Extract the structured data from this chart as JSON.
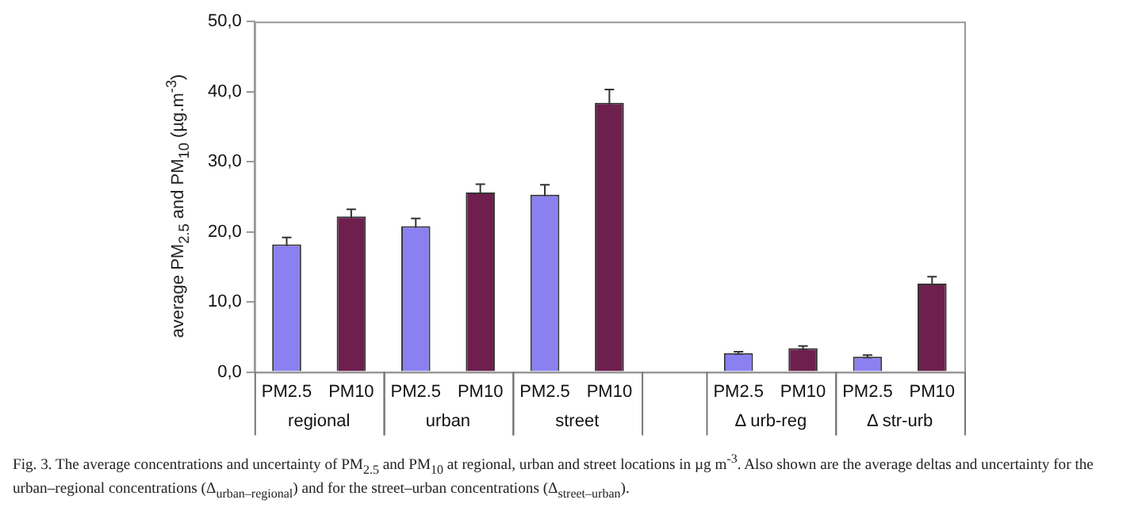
{
  "chart_data": {
    "type": "bar",
    "ylabel": "average PM$_{2.5}$ and PM$_{10}$ (µg.m$^{-3}$)",
    "categories": [
      "PM2.5",
      "PM10",
      "PM2.5",
      "PM10",
      "PM2.5",
      "PM10",
      null,
      "PM2.5",
      "PM10",
      "PM2.5",
      "PM10"
    ],
    "values": [
      18.2,
      22.2,
      20.8,
      25.6,
      25.3,
      38.4,
      null,
      2.7,
      3.4,
      2.2,
      12.6
    ],
    "errors": [
      1.0,
      1.0,
      1.1,
      1.2,
      1.4,
      1.9,
      null,
      0.2,
      0.3,
      0.2,
      1.0
    ],
    "colors": [
      "#8b80f0",
      "#6e1f4e",
      "#8b80f0",
      "#6e1f4e",
      "#8b80f0",
      "#6e1f4e",
      null,
      "#8b80f0",
      "#6e1f4e",
      "#8b80f0",
      "#6e1f4e"
    ],
    "ylim": [
      0,
      50
    ],
    "yticks": [
      {
        "value": 0,
        "label": "0,0"
      },
      {
        "value": 10,
        "label": "10,0"
      },
      {
        "value": 20,
        "label": "20,0"
      },
      {
        "value": 30,
        "label": "30,0"
      },
      {
        "value": 40,
        "label": "40,0"
      },
      {
        "value": 50,
        "label": "50,0"
      }
    ],
    "grid": false,
    "legend": false,
    "annotations": [
      "regional",
      "urban",
      "street",
      "Δ urb-reg",
      "Δ str-urb",
      "Fig. 3. The average concentrations and uncertainty of PM$_{2.5}$ and PM$_{10}$ at regional, urban and street locations in µg m$^{-3}$. Also shown are the average deltas and uncertainty for the urban–regional concentrations (Δ$_{urban–regional}$) and for the street–urban concentrations (Δ$_{street–urban}$)."
    ]
  }
}
